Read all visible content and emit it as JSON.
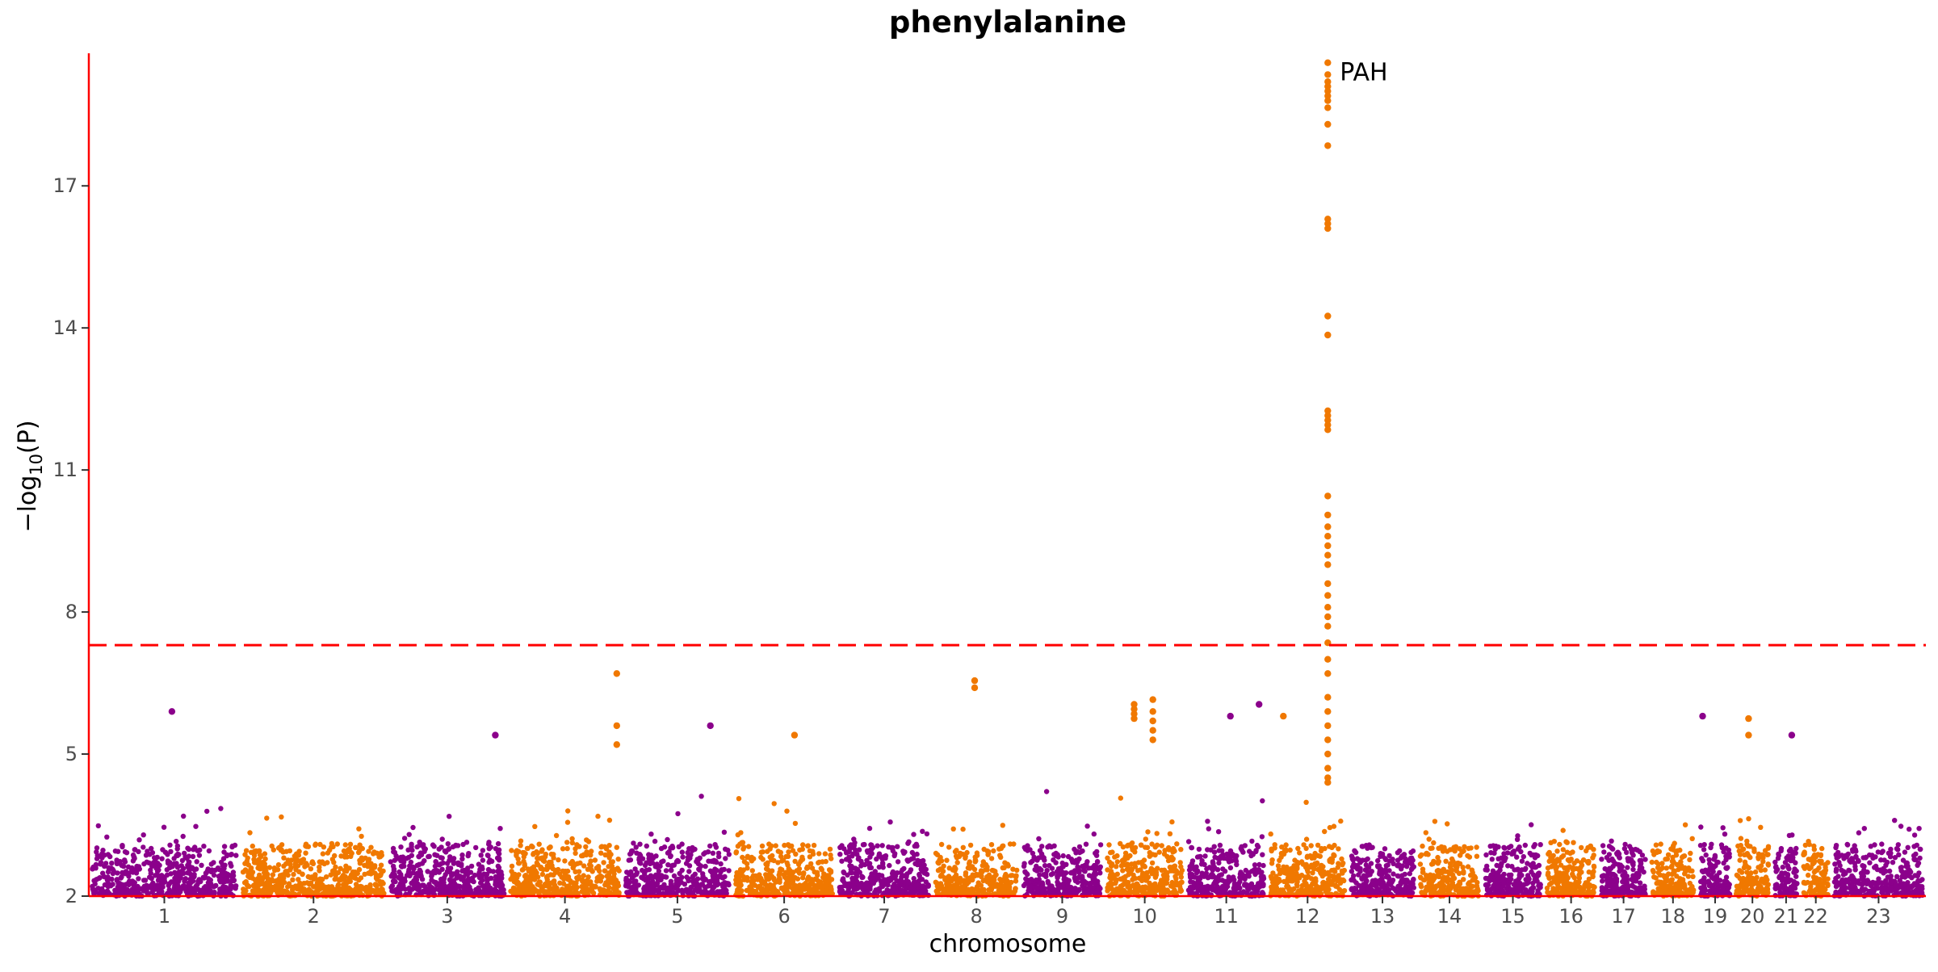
{
  "chart_data": {
    "type": "scatter",
    "title": "phenylalanine",
    "xlabel": "chromosome",
    "ylabel": "−log10(P)",
    "ylim": [
      2,
      19.8
    ],
    "yticks": [
      2,
      5,
      8,
      11,
      14,
      17
    ],
    "significance_threshold": 7.3,
    "threshold_line": "dashed",
    "colors": {
      "odd_chromosome": "#8b008b",
      "even_chromosome": "#f07800",
      "axis": "#ff0000",
      "threshold": "#ff0000"
    },
    "categories": [
      "1",
      "2",
      "3",
      "4",
      "5",
      "6",
      "7",
      "8",
      "9",
      "10",
      "11",
      "12",
      "13",
      "14",
      "15",
      "16",
      "17",
      "18",
      "19",
      "20",
      "21",
      "22",
      "23"
    ],
    "chromosome_colors": [
      "purple",
      "orange",
      "purple",
      "orange",
      "purple",
      "orange",
      "purple",
      "orange",
      "purple",
      "orange",
      "purple",
      "orange",
      "purple",
      "orange",
      "purple",
      "orange",
      "purple",
      "orange",
      "purple",
      "orange",
      "purple",
      "orange",
      "purple"
    ],
    "chromosome_relative_size": [
      249,
      243,
      198,
      190,
      181,
      171,
      159,
      145,
      138,
      134,
      135,
      133,
      114,
      107,
      102,
      90,
      83,
      80,
      59,
      64,
      47,
      51,
      156
    ],
    "chromosome_background_max": [
      4.6,
      4.9,
      4.8,
      4.9,
      4.6,
      4.8,
      4.8,
      4.6,
      4.7,
      4.7,
      4.5,
      4.5,
      4.3,
      4.5,
      4.3,
      4.2,
      4.6,
      4.4,
      4.5,
      4.3,
      4.2,
      4.3,
      3.6
    ],
    "series": [
      {
        "name": "",
        "hits": [
          {
            "chromosome": "1",
            "position": 0.55,
            "values": [
              5.9
            ]
          },
          {
            "chromosome": "3",
            "position": 0.9,
            "values": [
              5.4
            ]
          },
          {
            "chromosome": "4",
            "position": 0.95,
            "values": [
              6.7,
              5.6,
              5.2
            ]
          },
          {
            "chromosome": "5",
            "position": 0.8,
            "values": [
              5.6
            ]
          },
          {
            "chromosome": "6",
            "position": 0.6,
            "values": [
              5.4
            ]
          },
          {
            "chromosome": "8",
            "position": 0.48,
            "values": [
              6.55,
              6.4
            ]
          },
          {
            "chromosome": "10",
            "position": 0.37,
            "values": [
              6.05,
              5.95,
              5.85,
              5.75
            ]
          },
          {
            "chromosome": "10",
            "position": 0.6,
            "values": [
              6.15,
              5.9,
              5.7,
              5.5,
              5.3
            ]
          },
          {
            "chromosome": "11",
            "position": 0.55,
            "values": [
              5.8
            ]
          },
          {
            "chromosome": "11",
            "position": 0.9,
            "values": [
              6.05
            ]
          },
          {
            "chromosome": "12",
            "position": 0.2,
            "values": [
              5.8
            ]
          },
          {
            "chromosome": "12",
            "position": 0.75,
            "label": "PAH",
            "values": [
              19.6,
              19.35,
              19.2,
              19.1,
              19.0,
              18.9,
              18.8,
              18.65,
              18.3,
              17.85,
              16.3,
              16.2,
              16.1,
              14.25,
              13.85,
              12.25,
              12.15,
              12.05,
              11.95,
              11.85,
              10.45,
              10.05,
              9.8,
              9.6,
              9.4,
              9.2,
              9.0,
              8.6,
              8.35,
              8.1,
              7.9,
              7.7,
              7.35,
              7.0,
              6.7,
              6.2,
              5.9,
              5.6,
              5.3,
              5.0,
              4.7,
              4.5,
              4.4
            ]
          },
          {
            "chromosome": "19",
            "position": 0.15,
            "values": [
              5.8
            ]
          },
          {
            "chromosome": "20",
            "position": 0.4,
            "values": [
              5.75,
              5.4
            ]
          },
          {
            "chromosome": "21",
            "position": 0.7,
            "values": [
              5.4
            ]
          }
        ]
      }
    ]
  }
}
